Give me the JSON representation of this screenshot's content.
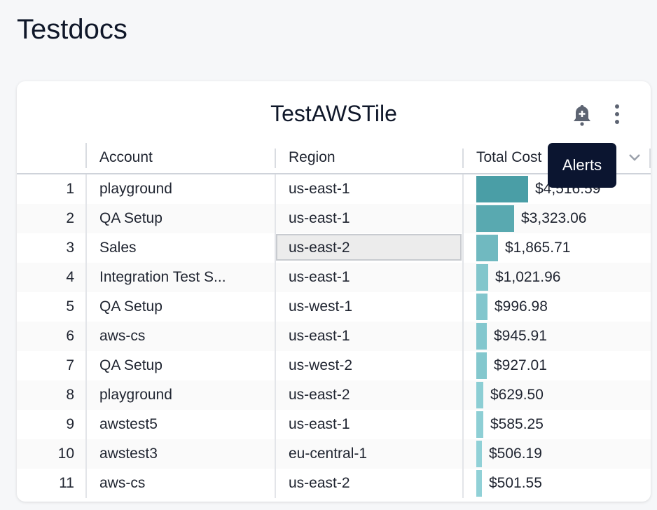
{
  "page": {
    "title": "Testdocs"
  },
  "tile": {
    "title": "TestAWSTile",
    "icons": {
      "alert": "bell-plus-icon",
      "menu": "more-vertical-icon"
    },
    "tooltip": "Alerts",
    "columns": {
      "account": "Account",
      "region": "Region",
      "total_cost": "Total Cost"
    },
    "bar_color_high": "#4a9ea6",
    "bar_color_low": "#b4eaef",
    "selected_cell": {
      "row": 3,
      "column": "region"
    },
    "rows": [
      {
        "index": "1",
        "account": "playground",
        "region": "us-east-1",
        "cost": "$4,516.59",
        "value": 4516.59
      },
      {
        "index": "2",
        "account": "QA Setup",
        "region": "us-east-1",
        "cost": "$3,323.06",
        "value": 3323.06
      },
      {
        "index": "3",
        "account": "Sales",
        "region": "us-east-2",
        "cost": "$1,865.71",
        "value": 1865.71
      },
      {
        "index": "4",
        "account": "Integration Test S...",
        "region": "us-east-1",
        "cost": "$1,021.96",
        "value": 1021.96
      },
      {
        "index": "5",
        "account": "QA Setup",
        "region": "us-west-1",
        "cost": "$996.98",
        "value": 996.98
      },
      {
        "index": "6",
        "account": "aws-cs",
        "region": "us-east-1",
        "cost": "$945.91",
        "value": 945.91
      },
      {
        "index": "7",
        "account": "QA Setup",
        "region": "us-west-2",
        "cost": "$927.01",
        "value": 927.01
      },
      {
        "index": "8",
        "account": "playground",
        "region": "us-east-2",
        "cost": "$629.50",
        "value": 629.5
      },
      {
        "index": "9",
        "account": "awstest5",
        "region": "us-east-1",
        "cost": "$585.25",
        "value": 585.25
      },
      {
        "index": "10",
        "account": "awstest3",
        "region": "eu-central-1",
        "cost": "$506.19",
        "value": 506.19
      },
      {
        "index": "11",
        "account": "aws-cs",
        "region": "us-east-2",
        "cost": "$501.55",
        "value": 501.55
      }
    ]
  }
}
